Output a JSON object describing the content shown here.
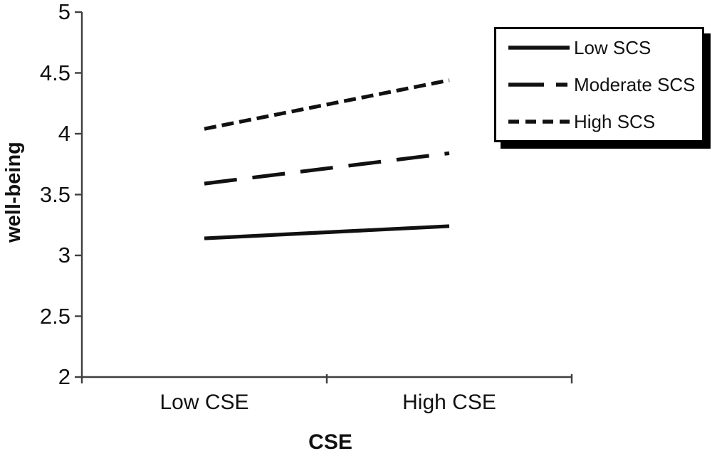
{
  "chart_data": {
    "type": "line",
    "title": "",
    "xlabel": "CSE",
    "ylabel": "well-being",
    "categories": [
      "Low CSE",
      "High CSE"
    ],
    "series": [
      {
        "name": "Low SCS",
        "style": "solid",
        "values": [
          3.14,
          3.24
        ]
      },
      {
        "name": "Moderate SCS",
        "style": "long-dash",
        "values": [
          3.59,
          3.84
        ]
      },
      {
        "name": "High SCS",
        "style": "short-dash",
        "values": [
          4.04,
          4.44
        ]
      }
    ],
    "ylim": [
      2,
      5
    ],
    "ytick_step": 0.5,
    "ytick_labels": [
      "2",
      "2.5",
      "3",
      "3.5",
      "4",
      "4.5",
      "5"
    ],
    "grid": false,
    "legend_position": "top-right",
    "line_color": "#111111",
    "axis_color": "#3f3f3f",
    "background_color": "#ffffff"
  }
}
